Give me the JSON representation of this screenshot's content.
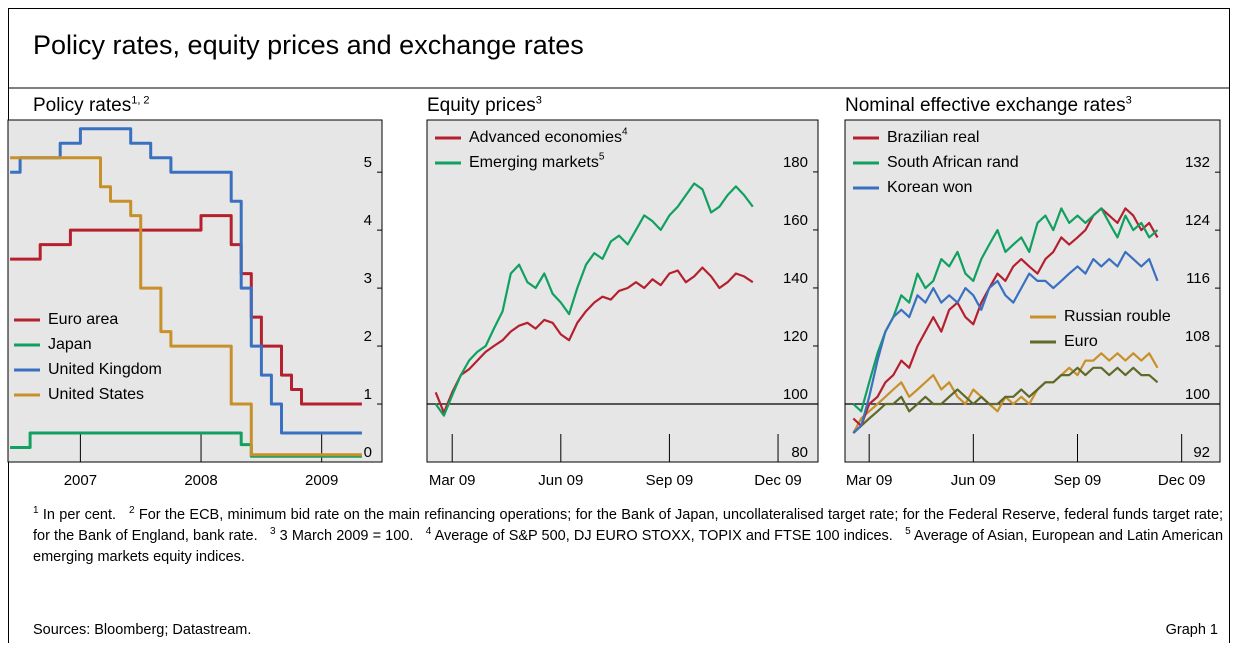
{
  "title": "Policy rates, equity prices and exchange rates",
  "chart_data": [
    {
      "type": "line",
      "step": true,
      "title": "Policy rates",
      "title_note": "1, 2",
      "x": [
        2006.917,
        2007.0,
        2007.083,
        2007.167,
        2007.25,
        2007.333,
        2007.417,
        2007.5,
        2007.583,
        2007.667,
        2007.75,
        2007.833,
        2007.917,
        2008.0,
        2008.083,
        2008.167,
        2008.25,
        2008.333,
        2008.417,
        2008.5,
        2008.583,
        2008.667,
        2008.75,
        2008.833,
        2008.917,
        2009.0,
        2009.083,
        2009.167,
        2009.25,
        2009.333,
        2009.417,
        2009.5,
        2009.583,
        2009.667,
        2009.75,
        2009.833
      ],
      "xlim": [
        2006.9,
        2010.0
      ],
      "xticks": [
        {
          "value": 2007.5,
          "label": "2007"
        },
        {
          "value": 2008.5,
          "label": "2008"
        },
        {
          "value": 2009.5,
          "label": "2009"
        }
      ],
      "ylim": [
        0,
        5.9
      ],
      "yticks": [
        0,
        1,
        2,
        3,
        4,
        5
      ],
      "legend": "center left",
      "series": [
        {
          "name": "Euro area",
          "color": "#b5202e",
          "values": [
            3.5,
            3.5,
            3.5,
            3.75,
            3.75,
            3.75,
            4,
            4,
            4,
            4,
            4,
            4,
            4,
            4,
            4,
            4,
            4,
            4,
            4,
            4.25,
            4.25,
            4.25,
            3.75,
            3.25,
            2.5,
            2,
            2,
            1.5,
            1.25,
            1,
            1,
            1,
            1,
            1,
            1,
            1
          ]
        },
        {
          "name": "Japan",
          "color": "#10a060",
          "values": [
            0.25,
            0.25,
            0.5,
            0.5,
            0.5,
            0.5,
            0.5,
            0.5,
            0.5,
            0.5,
            0.5,
            0.5,
            0.5,
            0.5,
            0.5,
            0.5,
            0.5,
            0.5,
            0.5,
            0.5,
            0.5,
            0.5,
            0.5,
            0.3,
            0.1,
            0.1,
            0.1,
            0.1,
            0.1,
            0.1,
            0.1,
            0.1,
            0.1,
            0.1,
            0.1,
            0.1
          ]
        },
        {
          "name": "United Kingdom",
          "color": "#3a70c0",
          "values": [
            5.0,
            5.25,
            5.25,
            5.25,
            5.25,
            5.5,
            5.5,
            5.75,
            5.75,
            5.75,
            5.75,
            5.75,
            5.5,
            5.5,
            5.25,
            5.25,
            5.0,
            5.0,
            5.0,
            5.0,
            5.0,
            5.0,
            4.5,
            3.0,
            2.0,
            1.5,
            1.0,
            0.5,
            0.5,
            0.5,
            0.5,
            0.5,
            0.5,
            0.5,
            0.5,
            0.5
          ]
        },
        {
          "name": "United States",
          "color": "#c8902a",
          "values": [
            5.25,
            5.25,
            5.25,
            5.25,
            5.25,
            5.25,
            5.25,
            5.25,
            5.25,
            4.75,
            4.5,
            4.5,
            4.25,
            3.0,
            3.0,
            2.25,
            2.0,
            2.0,
            2.0,
            2.0,
            2.0,
            2.0,
            1.0,
            1.0,
            0.125,
            0.125,
            0.125,
            0.125,
            0.125,
            0.125,
            0.125,
            0.125,
            0.125,
            0.125,
            0.125,
            0.125
          ]
        }
      ]
    },
    {
      "type": "line",
      "title": "Equity prices",
      "title_note": "3",
      "x": [
        2009.17,
        2009.189,
        2009.208,
        2009.228,
        2009.247,
        2009.266,
        2009.285,
        2009.304,
        2009.324,
        2009.343,
        2009.362,
        2009.381,
        2009.4,
        2009.42,
        2009.439,
        2009.458,
        2009.477,
        2009.496,
        2009.516,
        2009.535,
        2009.554,
        2009.573,
        2009.592,
        2009.612,
        2009.631,
        2009.65,
        2009.669,
        2009.688,
        2009.708,
        2009.727,
        2009.746,
        2009.765,
        2009.784,
        2009.804,
        2009.823,
        2009.842,
        2009.861,
        2009.88,
        2009.9
      ],
      "xlim": [
        2009.15,
        2010.05
      ],
      "xticks": [
        {
          "value": 2009.208,
          "label": "Mar 09"
        },
        {
          "value": 2009.458,
          "label": "Jun 09"
        },
        {
          "value": 2009.708,
          "label": "Sep 09"
        },
        {
          "value": 2009.958,
          "label": "Dec 09"
        }
      ],
      "ylim": [
        80,
        197.9
      ],
      "yticks": [
        80,
        100,
        120,
        140,
        160,
        180
      ],
      "refline": 100,
      "legend": "upper left",
      "series": [
        {
          "name": "Advanced economies",
          "name_note": "4",
          "color": "#b5202e",
          "values": [
            104,
            97,
            104,
            110,
            112,
            115,
            118,
            120,
            122,
            125,
            127,
            128,
            126,
            129,
            128,
            124,
            122,
            128,
            132,
            135,
            137,
            136,
            139,
            140,
            142,
            140,
            143,
            141,
            145,
            146,
            142,
            144,
            147,
            144,
            140,
            142,
            145,
            144,
            142
          ]
        },
        {
          "name": "Emerging markets",
          "name_note": "5",
          "color": "#10a060",
          "values": [
            100,
            96,
            103,
            110,
            115,
            118,
            120,
            126,
            132,
            145,
            148,
            142,
            140,
            145,
            138,
            135,
            131,
            140,
            148,
            152,
            150,
            156,
            158,
            155,
            160,
            165,
            163,
            160,
            165,
            168,
            172,
            176,
            174,
            166,
            168,
            172,
            175,
            172,
            168
          ]
        }
      ]
    },
    {
      "type": "line",
      "title": "Nominal effective exchange rates",
      "title_note": "3",
      "x": [
        2009.17,
        2009.189,
        2009.208,
        2009.228,
        2009.247,
        2009.266,
        2009.285,
        2009.304,
        2009.324,
        2009.343,
        2009.362,
        2009.381,
        2009.4,
        2009.42,
        2009.439,
        2009.458,
        2009.477,
        2009.496,
        2009.516,
        2009.535,
        2009.554,
        2009.573,
        2009.592,
        2009.612,
        2009.631,
        2009.65,
        2009.669,
        2009.688,
        2009.708,
        2009.727,
        2009.746,
        2009.765,
        2009.784,
        2009.804,
        2009.823,
        2009.842,
        2009.861,
        2009.88,
        2009.9
      ],
      "xlim": [
        2009.15,
        2010.05
      ],
      "xticks": [
        {
          "value": 2009.208,
          "label": "Mar 09"
        },
        {
          "value": 2009.458,
          "label": "Jun 09"
        },
        {
          "value": 2009.708,
          "label": "Sep 09"
        },
        {
          "value": 2009.958,
          "label": "Dec 09"
        }
      ],
      "ylim": [
        92,
        139.2
      ],
      "yticks": [
        92,
        100,
        108,
        116,
        124,
        132
      ],
      "refline": 100,
      "series": [
        {
          "name": "Russian rouble",
          "legend": "center right",
          "color": "#c8902a",
          "values": [
            96,
            98,
            99,
            100,
            101,
            102,
            103,
            101,
            102,
            103,
            104,
            102,
            103,
            101,
            100,
            102,
            101,
            100,
            99,
            101,
            100,
            101,
            100,
            102,
            103,
            103,
            104,
            105,
            104,
            106,
            106,
            107,
            106,
            107,
            106,
            107,
            106,
            107,
            105
          ]
        },
        {
          "name": "Euro",
          "legend": "center right",
          "color": "#5f6a2a",
          "values": [
            96,
            97,
            98,
            99,
            100,
            100,
            101,
            99,
            100,
            101,
            100,
            100,
            101,
            102,
            101,
            100,
            101,
            100,
            100,
            101,
            101,
            102,
            101,
            102,
            103,
            103,
            104,
            104,
            105,
            104,
            105,
            105,
            104,
            105,
            104,
            105,
            104,
            104,
            103
          ]
        },
        {
          "name": "Brazilian real",
          "legend": "upper left",
          "color": "#b5202e",
          "values": [
            98,
            97,
            100,
            101,
            103,
            104,
            106,
            105,
            108,
            110,
            112,
            110,
            113,
            114,
            112,
            111,
            114,
            116,
            118,
            117,
            119,
            120,
            119,
            118,
            120,
            121,
            123,
            122,
            123,
            124,
            126,
            127,
            126,
            125,
            127,
            126,
            124,
            125,
            123
          ]
        },
        {
          "name": "South African rand",
          "legend": "upper left",
          "color": "#10a060",
          "values": [
            100,
            99,
            103,
            107,
            110,
            112,
            115,
            114,
            118,
            116,
            117,
            120,
            119,
            121,
            118,
            117,
            120,
            122,
            124,
            121,
            122,
            123,
            121,
            125,
            126,
            124,
            127,
            125,
            126,
            125,
            126,
            127,
            125,
            123,
            126,
            124,
            125,
            123,
            124
          ]
        },
        {
          "name": "Korean won",
          "legend": "upper left",
          "color": "#3a70c0",
          "values": [
            96,
            97,
            101,
            106,
            110,
            112,
            113,
            112,
            115,
            114,
            116,
            114,
            115,
            114,
            116,
            115,
            113,
            116,
            117,
            115,
            114,
            116,
            118,
            117,
            117,
            116,
            117,
            118,
            119,
            118,
            120,
            119,
            120,
            119,
            121,
            120,
            119,
            120,
            117
          ]
        }
      ]
    }
  ],
  "footnotes": [
    {
      "mark": "1",
      "text": "In per cent."
    },
    {
      "mark": "2",
      "text": "For the ECB, minimum bid rate on the main refinancing operations; for the Bank of Japan, uncollateralised target rate; for the Federal Reserve, federal funds target rate; for the Bank of England, bank rate."
    },
    {
      "mark": "3",
      "text": "3 March 2009 = 100."
    },
    {
      "mark": "4",
      "text": "Average of S&P 500, DJ EURO STOXX, TOPIX and FTSE 100 indices."
    },
    {
      "mark": "5",
      "text": "Average of Asian, European and Latin American emerging markets equity indices."
    }
  ],
  "sources": "Sources: Bloomberg; Datastream.",
  "graph_label": "Graph 1"
}
